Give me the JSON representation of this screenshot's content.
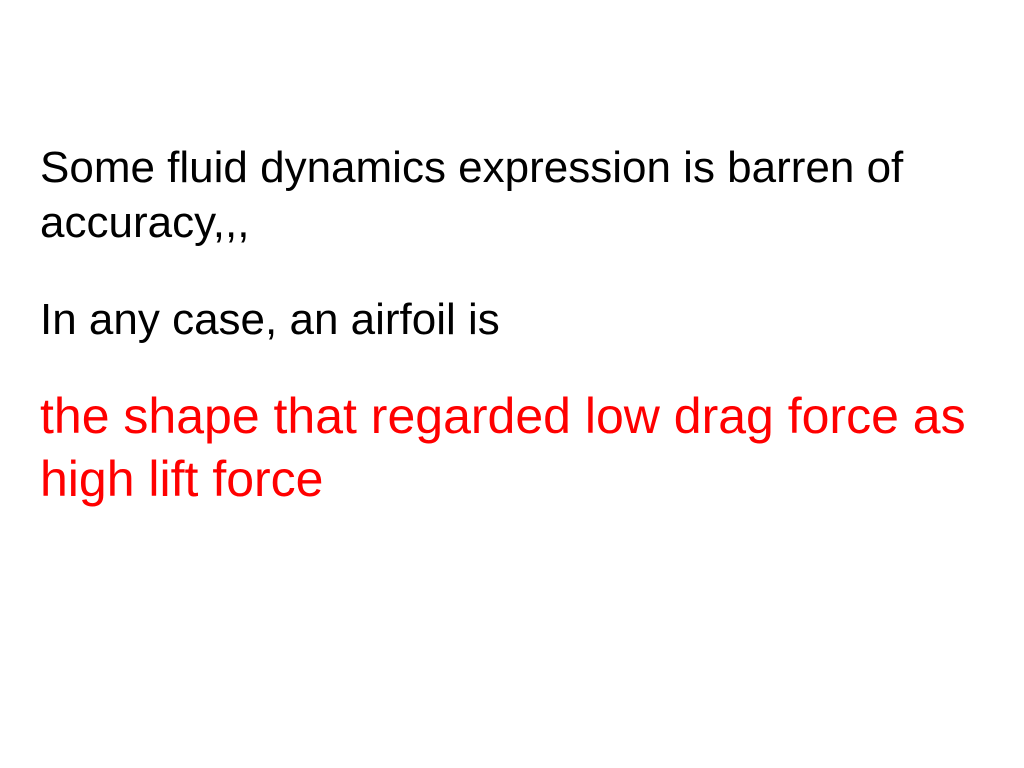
{
  "slide": {
    "paragraph1": {
      "text": "Some fluid dynamics expression is barren of accuracy,,,",
      "color": "#000000",
      "fontsize": 44
    },
    "paragraph2": {
      "text": "In any case, an airfoil is",
      "color": "#000000",
      "fontsize": 44
    },
    "paragraph3": {
      "text": "the shape that regarded low drag force as high lift force",
      "color": "#ff0000",
      "fontsize": 50
    },
    "background_color": "#ffffff"
  }
}
